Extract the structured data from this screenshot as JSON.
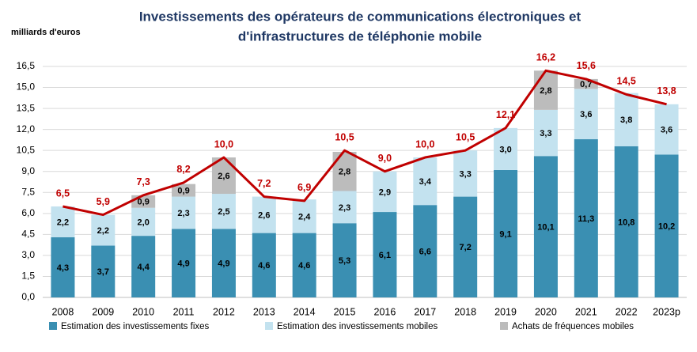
{
  "chart_data": {
    "type": "stacked-bar-line",
    "title": [
      "Investissements des opérateurs de communications électroniques et",
      "d'infrastructures de téléphonie mobile"
    ],
    "y_label": "milliards d'euros",
    "categories": [
      "2008",
      "2009",
      "2010",
      "2011",
      "2012",
      "2013",
      "2014",
      "2015",
      "2016",
      "2017",
      "2018",
      "2019",
      "2020",
      "2021",
      "2022",
      "2023p"
    ],
    "series": [
      {
        "name": "Estimation des investissements fixes",
        "color": "#3a8fb2",
        "values": [
          4.3,
          3.7,
          4.4,
          4.9,
          4.9,
          4.6,
          4.6,
          5.3,
          6.1,
          6.6,
          7.2,
          9.1,
          10.1,
          11.3,
          10.8,
          10.2
        ],
        "value_labels": [
          "4,3",
          "3,7",
          "4,4",
          "4,9",
          "4,9",
          "4,6",
          "4,6",
          "5,3",
          "6,1",
          "6,6",
          "7,2",
          "9,1",
          "10,1",
          "11,3",
          "10,8",
          "10,2"
        ]
      },
      {
        "name": "Estimation des investissements mobiles",
        "color": "#c3e2ef",
        "values": [
          2.2,
          2.2,
          2.0,
          2.3,
          2.5,
          2.6,
          2.4,
          2.3,
          2.9,
          3.4,
          3.3,
          3.0,
          3.3,
          3.6,
          3.8,
          3.6
        ],
        "value_labels": [
          "2,2",
          "2,2",
          "2,0",
          "2,3",
          "2,5",
          "2,6",
          "2,4",
          "2,3",
          "2,9",
          "3,4",
          "3,3",
          "3,0",
          "3,3",
          "3,6",
          "3,8",
          "3,6"
        ]
      },
      {
        "name": "Achats de fréquences mobiles",
        "color": "#bcbcbc",
        "values": [
          null,
          null,
          0.9,
          0.9,
          2.6,
          null,
          null,
          2.8,
          null,
          null,
          null,
          null,
          2.8,
          0.7,
          null,
          null
        ],
        "value_labels": [
          null,
          null,
          "0,9",
          "0,9",
          "2,6",
          null,
          null,
          "2,8",
          null,
          null,
          null,
          null,
          "2,8",
          "0,7",
          null,
          null
        ]
      }
    ],
    "totals": {
      "color": "#c00000",
      "values": [
        6.5,
        5.9,
        7.3,
        8.2,
        10.0,
        7.2,
        6.9,
        10.5,
        9.0,
        10.0,
        10.5,
        12.1,
        16.2,
        15.6,
        14.5,
        13.8
      ],
      "value_labels": [
        "6,5",
        "5,9",
        "7,3",
        "8,2",
        "10,0",
        "7,2",
        "6,9",
        "10,5",
        "9,0",
        "10,0",
        "10,5",
        "12,1",
        "16,2",
        "15,6",
        "14,5",
        "13,8"
      ]
    },
    "ylim": [
      0,
      16.5
    ],
    "yticks": [
      {
        "value": 0,
        "label": "0,0"
      },
      {
        "value": 1.5,
        "label": "1,5"
      },
      {
        "value": 3,
        "label": "3,0"
      },
      {
        "value": 4.5,
        "label": "4,5"
      },
      {
        "value": 6,
        "label": "6,0"
      },
      {
        "value": 7.5,
        "label": "7,5"
      },
      {
        "value": 9,
        "label": "9,0"
      },
      {
        "value": 10.5,
        "label": "10,5"
      },
      {
        "value": 12,
        "label": "12,0"
      },
      {
        "value": 13.5,
        "label": "13,5"
      },
      {
        "value": 15,
        "label": "15,0"
      },
      {
        "value": 16.5,
        "label": "16,5"
      }
    ],
    "grid": true
  }
}
